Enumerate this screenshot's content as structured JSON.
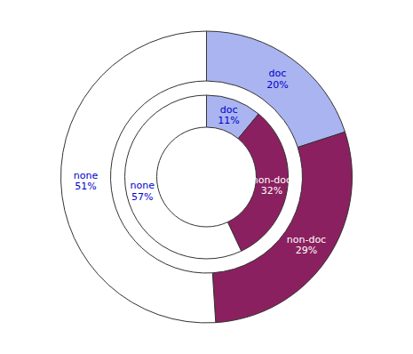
{
  "chart_data": {
    "type": "pie",
    "categories": [
      "doc",
      "non-doc",
      "none"
    ],
    "colors": [
      "#aab4f0",
      "#8b2060",
      "#ffffff"
    ],
    "series": [
      {
        "values": [
          11,
          32,
          57
        ],
        "value_labels": [
          "11%",
          "32%",
          "57%"
        ]
      },
      {
        "values": [
          20,
          29,
          51
        ],
        "value_labels": [
          "20%",
          "29%",
          "51%"
        ]
      }
    ],
    "data_labels": true
  }
}
